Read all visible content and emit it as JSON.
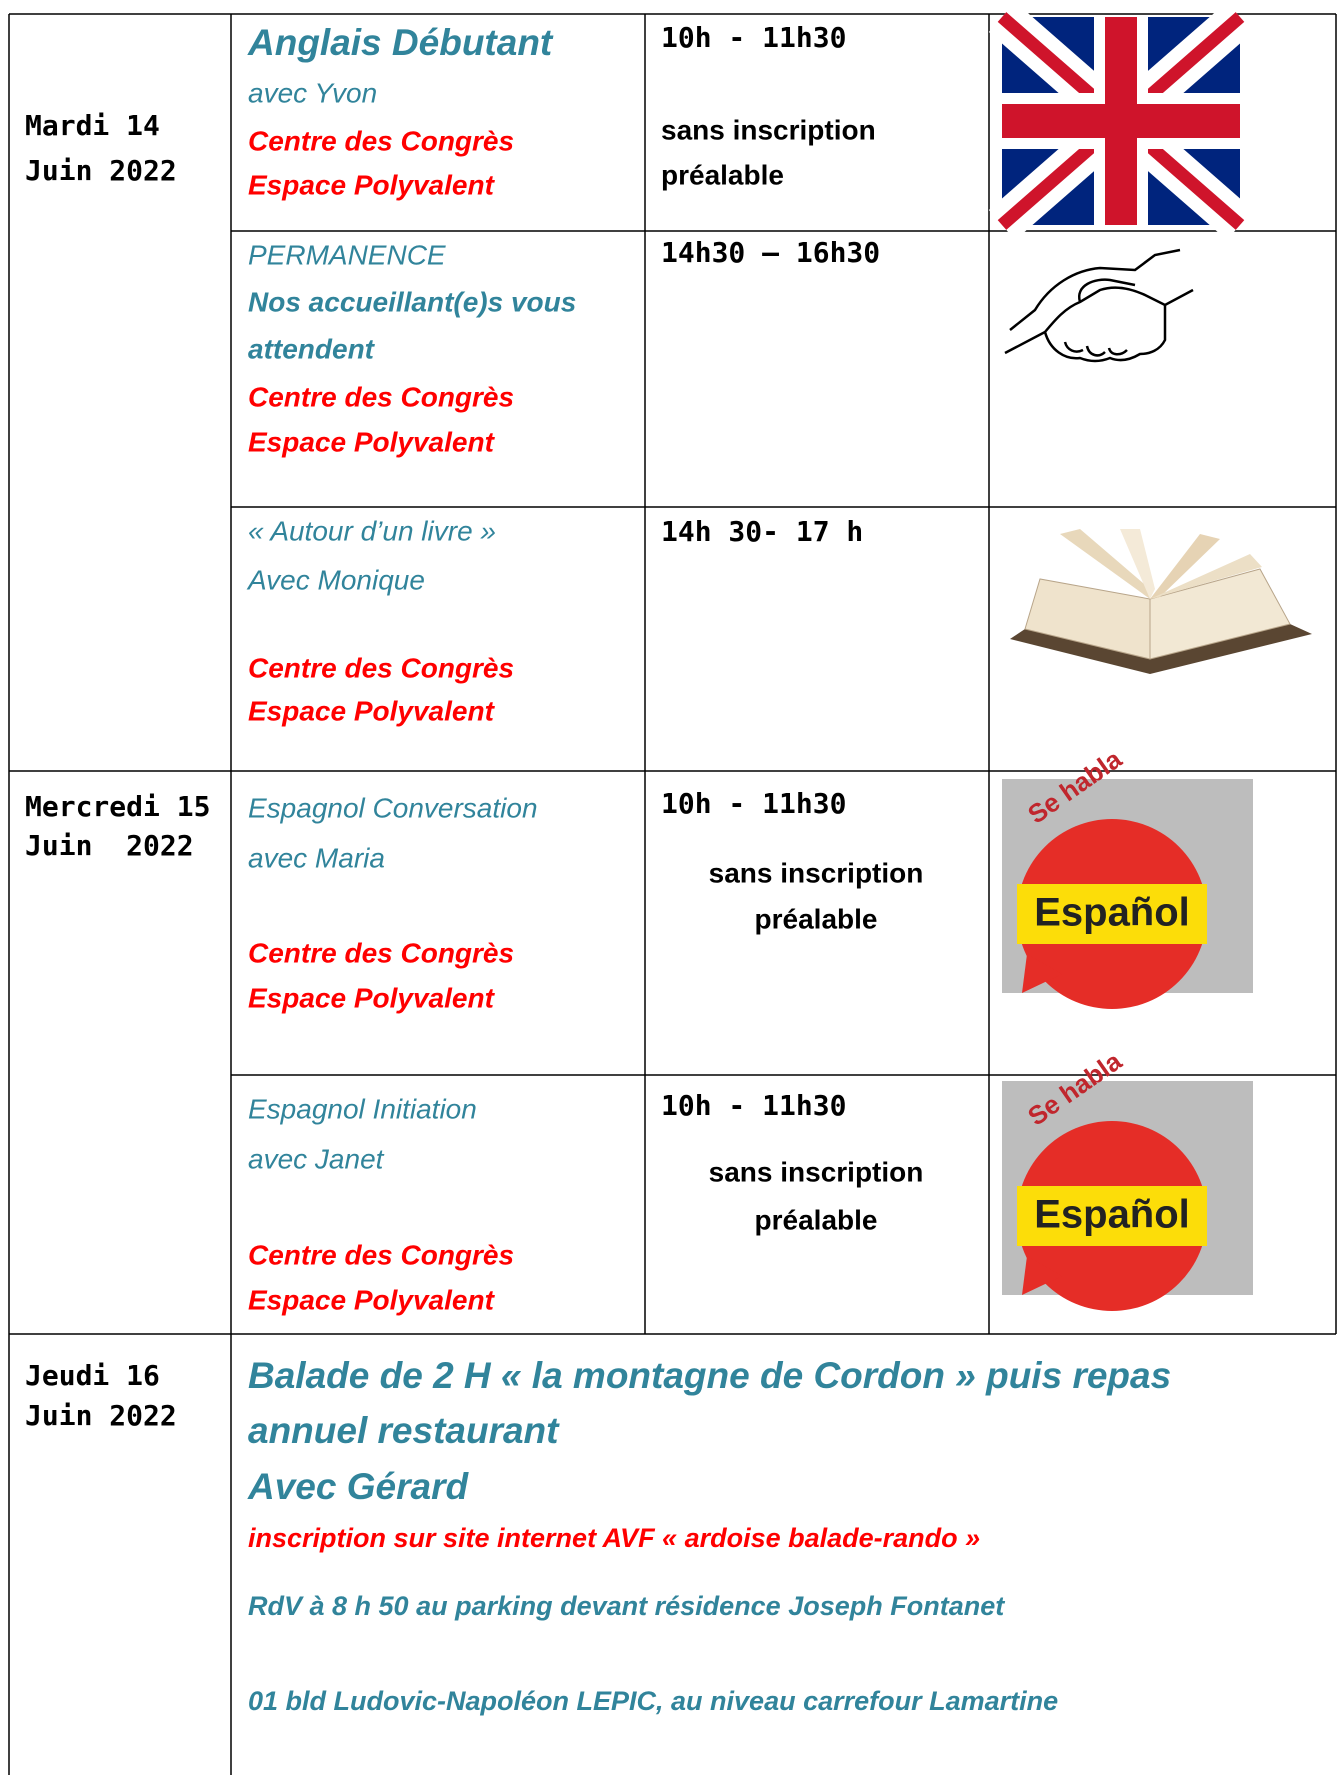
{
  "schedule": [
    {
      "day": [
        "Mardi 14",
        "Juin 2022"
      ],
      "events": [
        {
          "title": "Anglais Débutant",
          "details": [
            "avec Yvon"
          ],
          "place": [
            "Centre des Congrès",
            "Espace Polyvalent"
          ],
          "time": "10h - 11h30",
          "note": [
            "sans inscription",
            "préalable"
          ]
        },
        {
          "title": "PERMANENCE",
          "details": [
            "Nos accueillant(e)s vous",
            "attendent"
          ],
          "place": [
            "Centre des Congrès",
            "Espace Polyvalent"
          ],
          "time": "14h30 – 16h30"
        },
        {
          "title": "« Autour d’un livre »",
          "details": [
            "Avec Monique"
          ],
          "place": [
            "Centre des Congrès",
            "Espace Polyvalent"
          ],
          "time": "14h 30- 17 h"
        }
      ]
    },
    {
      "day": [
        "Mercredi 15",
        "Juin  2022"
      ],
      "events": [
        {
          "title": "Espagnol Conversation",
          "details": [
            "avec Maria"
          ],
          "place": [
            "Centre des Congrès",
            "Espace Polyvalent"
          ],
          "time": "10h - 11h30",
          "note": [
            "sans inscription",
            "préalable"
          ],
          "image_text": [
            "Se habla",
            "Español"
          ]
        },
        {
          "title": "Espagnol Initiation",
          "details": [
            "avec Janet"
          ],
          "place": [
            "Centre des Congrès",
            "Espace Polyvalent"
          ],
          "time": "10h - 11h30",
          "note": [
            "sans inscription",
            "préalable"
          ],
          "image_text": [
            "Se habla",
            "Español"
          ]
        }
      ]
    },
    {
      "day": [
        "Jeudi 16",
        "Juin 2022"
      ],
      "events": [
        {
          "title": [
            "Balade de 2 H « la montagne de Cordon » puis repas",
            "annuel restaurant"
          ],
          "leader": "Avec Gérard",
          "registration": "inscription sur site internet AVF « ardoise balade-rando »",
          "meeting": "RdV à 8 h 50 au parking devant résidence Joseph Fontanet",
          "address": "01 bld Ludovic-Napoléon LEPIC, au niveau carrefour Lamartine"
        }
      ]
    }
  ]
}
